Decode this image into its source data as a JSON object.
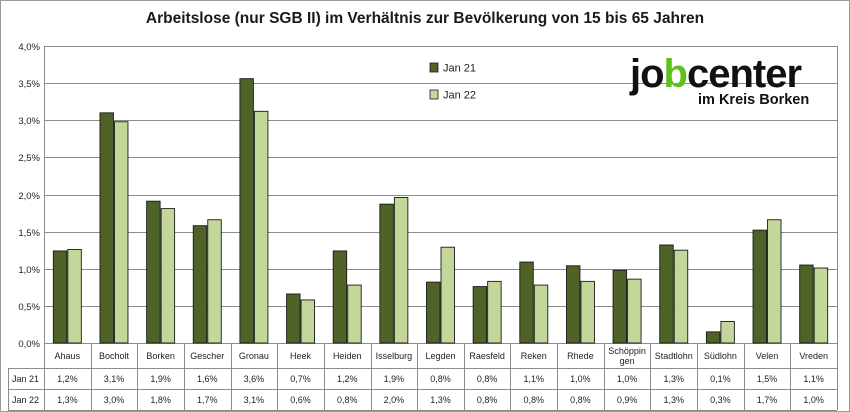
{
  "chart_data": {
    "type": "bar",
    "title": "Arbeitslose (nur SGB II) im Verhältnis zur Bevölkerung von 15 bis 65 Jahren",
    "categories": [
      "Ahaus",
      "Bocholt",
      "Borken",
      "Gescher",
      "Gronau",
      "Heek",
      "Heiden",
      "Isselburg",
      "Legden",
      "Raesfeld",
      "Reken",
      "Rhede",
      "Schöppingen",
      "Stadtlohn",
      "Südlohn",
      "Velen",
      "Vreden"
    ],
    "category_labels": [
      [
        "Ahaus"
      ],
      [
        "Bocholt"
      ],
      [
        "Borken"
      ],
      [
        "Gescher"
      ],
      [
        "Gronau"
      ],
      [
        "Heek"
      ],
      [
        "Heiden"
      ],
      [
        "Isselburg"
      ],
      [
        "Legden"
      ],
      [
        "Raesfeld"
      ],
      [
        "Reken"
      ],
      [
        "Rhede"
      ],
      [
        "Schöppin",
        "gen"
      ],
      [
        "Stadtlohn"
      ],
      [
        "Südlohn"
      ],
      [
        "Velen"
      ],
      [
        "Vreden"
      ]
    ],
    "series": [
      {
        "name": "Jan 21",
        "color": "#4f6228",
        "values": [
          1.24,
          3.1,
          1.91,
          1.58,
          3.56,
          0.66,
          1.24,
          1.87,
          0.82,
          0.76,
          1.09,
          1.04,
          0.98,
          1.32,
          0.15,
          1.52,
          1.05
        ],
        "labels": [
          "1,2%",
          "3,1%",
          "1,9%",
          "1,6%",
          "3,6%",
          "0,7%",
          "1,2%",
          "1,9%",
          "0,8%",
          "0,8%",
          "1,1%",
          "1,0%",
          "1,0%",
          "1,3%",
          "0,1%",
          "1,5%",
          "1,1%"
        ]
      },
      {
        "name": "Jan 22",
        "color": "#c4d79b",
        "values": [
          1.26,
          2.98,
          1.81,
          1.66,
          3.12,
          0.58,
          0.78,
          1.96,
          1.29,
          0.83,
          0.78,
          0.83,
          0.86,
          1.25,
          0.29,
          1.66,
          1.01
        ],
        "labels": [
          "1,3%",
          "3,0%",
          "1,8%",
          "1,7%",
          "3,1%",
          "0,6%",
          "0,8%",
          "2,0%",
          "1,3%",
          "0,8%",
          "0,8%",
          "0,8%",
          "0,9%",
          "1,3%",
          "0,3%",
          "1,7%",
          "1,0%"
        ]
      }
    ],
    "ylim": [
      0,
      4.0
    ],
    "yticks": [
      "0,0%",
      "0,5%",
      "1,0%",
      "1,5%",
      "2,0%",
      "2,5%",
      "3,0%",
      "3,5%",
      "4,0%"
    ],
    "grid": true,
    "legend_position": "top-right",
    "xlabel": "",
    "ylabel": ""
  },
  "logo": {
    "brand_a": "jo",
    "brand_b": "b",
    "brand_c": "center",
    "subtitle": "im Kreis Borken"
  }
}
